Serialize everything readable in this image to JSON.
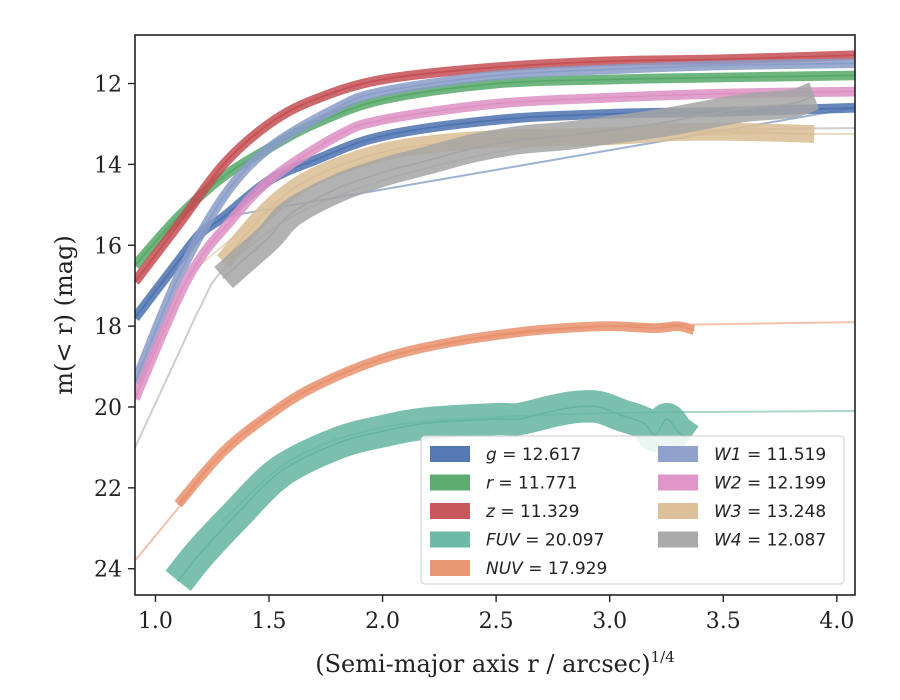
{
  "chart_data": {
    "type": "line",
    "xlabel": "(Semi-major axis r / arcsec)",
    "xlabel_superscript": "1/4",
    "ylabel": "m(< r) (mag)",
    "xlim": [
      0.91,
      4.08
    ],
    "ylim": [
      24.65,
      10.8
    ],
    "y_inverted": true,
    "xticks": [
      "1.0",
      "1.5",
      "2.0",
      "2.5",
      "3.0",
      "3.5",
      "4.0"
    ],
    "yticks": [
      "12",
      "14",
      "16",
      "18",
      "20",
      "22",
      "24"
    ],
    "grid": false,
    "legend_placement": "lower-right",
    "series": [
      {
        "name": "g",
        "label": "g = 12.617",
        "color": "#4c72b0",
        "band": 0.12,
        "x": [
          0.91,
          1.1,
          1.2,
          1.3,
          1.5,
          1.7,
          2.0,
          2.5,
          3.0,
          3.5,
          4.08
        ],
        "y": [
          17.8,
          16.4,
          15.7,
          15.3,
          14.4,
          13.9,
          13.3,
          12.9,
          12.75,
          12.7,
          12.6
        ],
        "model_x": [
          1.3,
          4.08
        ],
        "model_y": [
          15.3,
          12.6
        ]
      },
      {
        "name": "r",
        "label": "r = 11.771",
        "color": "#55a868",
        "band": 0.12,
        "x": [
          0.91,
          1.1,
          1.3,
          1.5,
          1.7,
          2.0,
          2.5,
          3.0,
          3.5,
          4.08
        ],
        "y": [
          16.5,
          15.3,
          14.3,
          13.6,
          13.0,
          12.4,
          12.0,
          11.9,
          11.85,
          11.8
        ]
      },
      {
        "name": "z",
        "label": "z = 11.329",
        "color": "#c44e52",
        "band": 0.12,
        "x": [
          0.91,
          1.1,
          1.3,
          1.5,
          1.7,
          2.0,
          2.5,
          3.0,
          3.5,
          4.08
        ],
        "y": [
          16.9,
          15.5,
          14.0,
          13.0,
          12.4,
          11.9,
          11.6,
          11.45,
          11.4,
          11.3
        ]
      },
      {
        "name": "FUV",
        "label": "FUV = 20.097",
        "color": "#64b5a0",
        "band": 0.4,
        "x": [
          1.1,
          1.2,
          1.35,
          1.55,
          1.8,
          2.0,
          2.2,
          2.5,
          2.6,
          2.75,
          2.85,
          2.95,
          3.05,
          3.15,
          3.2,
          3.25,
          3.3,
          3.35
        ],
        "y": [
          24.3,
          23.6,
          22.7,
          21.6,
          20.9,
          20.6,
          20.4,
          20.3,
          20.3,
          20.1,
          20.0,
          20.0,
          20.2,
          20.4,
          20.7,
          20.3,
          20.6,
          20.8
        ],
        "model_x": [
          1.3,
          1.6,
          2.0,
          2.5,
          3.0,
          3.5,
          4.08
        ],
        "model_y": [
          22.8,
          21.3,
          20.5,
          20.25,
          20.15,
          20.12,
          20.1
        ]
      },
      {
        "name": "NUV",
        "label": "NUV = 17.929",
        "color": "#e8906c",
        "band": 0.12,
        "x": [
          1.1,
          1.3,
          1.5,
          1.7,
          2.0,
          2.3,
          2.6,
          2.8,
          3.0,
          3.2,
          3.3,
          3.37
        ],
        "y": [
          22.4,
          21.1,
          20.2,
          19.5,
          18.8,
          18.4,
          18.15,
          18.05,
          18.0,
          18.05,
          18.0,
          18.1
        ],
        "model_x": [
          0.91,
          1.1,
          1.3,
          1.6,
          2.0,
          2.5,
          3.0,
          3.5,
          4.08
        ],
        "model_y": [
          23.8,
          22.5,
          21.1,
          19.8,
          18.8,
          18.25,
          18.0,
          17.95,
          17.9
        ]
      },
      {
        "name": "W1",
        "label": "W1 = 11.519",
        "color": "#8a9cc8",
        "band": 0.12,
        "x": [
          0.91,
          1.1,
          1.3,
          1.5,
          1.8,
          2.0,
          2.5,
          3.0,
          3.5,
          4.08
        ],
        "y": [
          19.4,
          16.8,
          14.8,
          13.6,
          12.6,
          12.2,
          11.8,
          11.65,
          11.55,
          11.5
        ]
      },
      {
        "name": "W2",
        "label": "W2 = 12.199",
        "color": "#dd8fc4",
        "band": 0.12,
        "x": [
          0.91,
          1.1,
          1.2,
          1.3,
          1.5,
          1.8,
          2.0,
          2.5,
          3.0,
          3.5,
          4.08
        ],
        "y": [
          19.8,
          17.3,
          16.3,
          15.6,
          14.4,
          13.3,
          12.9,
          12.5,
          12.35,
          12.25,
          12.2
        ]
      },
      {
        "name": "W3",
        "label": "W3 = 13.248",
        "color": "#d9bd94",
        "band": 0.22,
        "x": [
          1.3,
          1.5,
          1.7,
          2.0,
          2.3,
          2.6,
          3.0,
          3.3,
          3.6,
          3.9
        ],
        "y": [
          16.4,
          15.1,
          14.3,
          13.7,
          13.45,
          13.35,
          13.3,
          13.2,
          13.2,
          13.25
        ],
        "model_x": [
          0.91,
          1.1,
          1.3,
          1.6,
          2.0,
          2.5,
          3.0,
          3.5,
          4.08
        ],
        "model_y": [
          19.8,
          17.2,
          16.0,
          14.8,
          13.8,
          13.4,
          13.3,
          13.25,
          13.25
        ]
      },
      {
        "name": "W4",
        "label": "W4 = 12.087",
        "color": "#a5a5a5",
        "band": 0.35,
        "x": [
          1.3,
          1.4,
          1.5,
          1.6,
          1.8,
          2.0,
          2.2,
          2.4,
          2.6,
          2.8,
          3.0,
          3.2,
          3.4,
          3.6,
          3.8,
          3.9
        ],
        "y": [
          16.8,
          16.3,
          15.8,
          15.2,
          14.6,
          14.2,
          13.9,
          13.6,
          13.4,
          13.3,
          13.15,
          13.0,
          12.8,
          12.6,
          12.5,
          12.3
        ],
        "model_x": [
          0.91,
          1.1,
          1.2,
          1.3,
          1.6,
          2.0,
          2.5,
          3.0,
          3.5,
          4.08
        ],
        "model_y": [
          21.0,
          18.7,
          17.5,
          16.6,
          15.3,
          14.4,
          13.7,
          13.3,
          13.15,
          13.1
        ]
      }
    ]
  }
}
